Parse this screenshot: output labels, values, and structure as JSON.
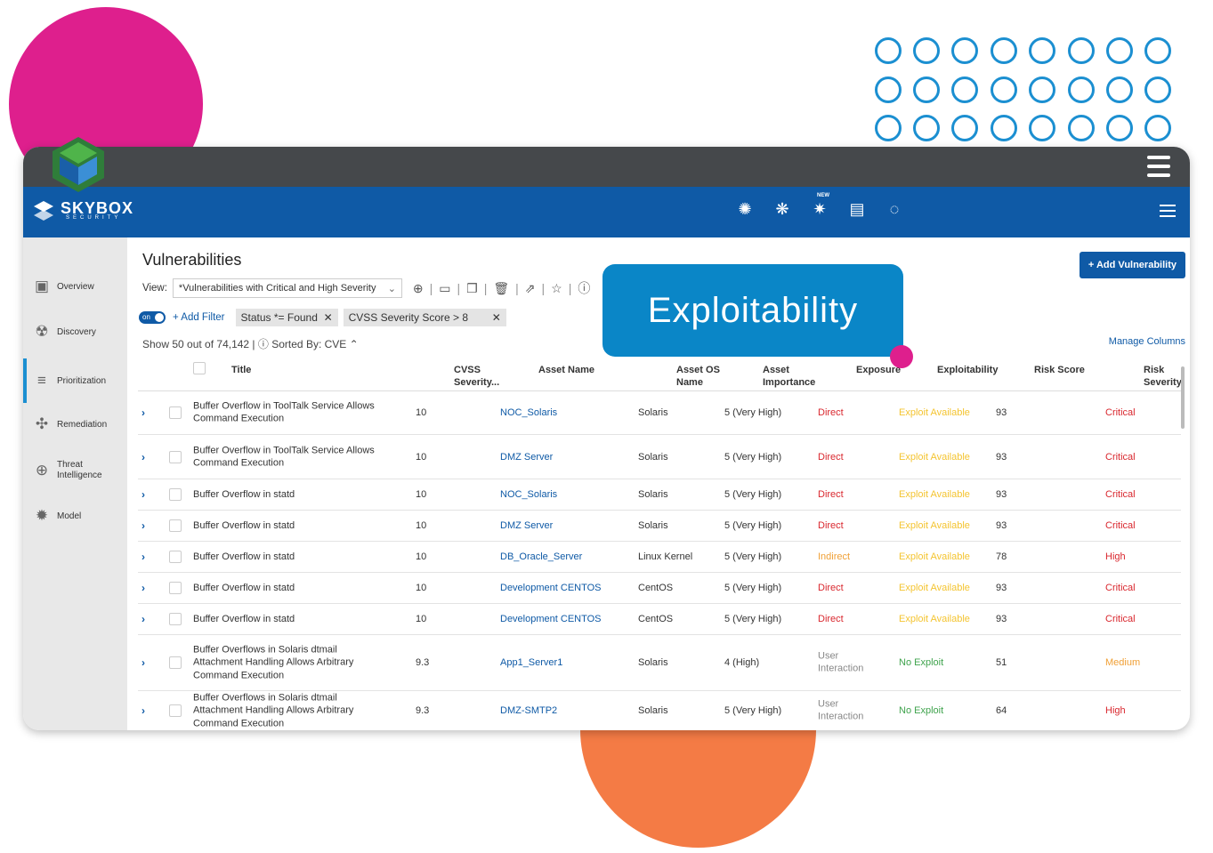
{
  "brand": {
    "name": "SKYBOX",
    "subtitle": "SECURITY"
  },
  "nav_icons": [
    "network-icon",
    "topology-icon",
    "new-feature-icon",
    "clipboard-icon",
    "chat-icon"
  ],
  "nav_new_badge": "NEW",
  "sidebar": {
    "items": [
      {
        "label": "Overview",
        "icon": "overview-icon"
      },
      {
        "label": "Discovery",
        "icon": "discovery-icon"
      },
      {
        "label": "Prioritization",
        "icon": "prioritization-icon",
        "active": true
      },
      {
        "label": "Remediation",
        "icon": "remediation-icon"
      },
      {
        "label": "Threat Intelligence",
        "icon": "threat-intel-icon"
      },
      {
        "label": "Model",
        "icon": "model-icon"
      }
    ]
  },
  "page": {
    "title": "Vulnerabilities",
    "add_button": "+ Add Vulnerability",
    "view_label": "View:",
    "view_value": "*Vulnerabilities with Critical and High Severity",
    "toggle_label": "on",
    "add_filter": "+ Add Filter",
    "filters": [
      "Status *= Found",
      "CVSS Severity Score > 8"
    ],
    "show_text": "Show 50 out of 74,142 |",
    "sorted_by_label": "Sorted By:",
    "sorted_by_value": "CVE",
    "manage_columns": "Manage Columns"
  },
  "callout": {
    "text": "Exploitability"
  },
  "columns": {
    "title": "Title",
    "cvss": "CVSS Severity...",
    "asset_name": "Asset Name",
    "asset_os": "Asset OS Name",
    "asset_importance": "Asset Importance",
    "exposure": "Exposure",
    "exploitability": "Exploitability",
    "risk_score": "Risk Score",
    "risk_severity": "Risk Severity"
  },
  "rows": [
    {
      "title": "Buffer Overflow in ToolTalk Service Allows Command Execution",
      "cvss": "10",
      "asset": "NOC_Solaris",
      "os": "Solaris",
      "importance": "5 (Very High)",
      "exposure": "Direct",
      "exploit": "Exploit Available",
      "score": "93",
      "severity": "Critical"
    },
    {
      "title": "Buffer Overflow in ToolTalk Service Allows Command Execution",
      "cvss": "10",
      "asset": "DMZ Server",
      "os": "Solaris",
      "importance": "5 (Very High)",
      "exposure": "Direct",
      "exploit": "Exploit Available",
      "score": "93",
      "severity": "Critical"
    },
    {
      "title": "Buffer Overflow in statd",
      "cvss": "10",
      "asset": "NOC_Solaris",
      "os": "Solaris",
      "importance": "5 (Very High)",
      "exposure": "Direct",
      "exploit": "Exploit Available",
      "score": "93",
      "severity": "Critical"
    },
    {
      "title": "Buffer Overflow in statd",
      "cvss": "10",
      "asset": "DMZ Server",
      "os": "Solaris",
      "importance": "5 (Very High)",
      "exposure": "Direct",
      "exploit": "Exploit Available",
      "score": "93",
      "severity": "Critical"
    },
    {
      "title": "Buffer Overflow in statd",
      "cvss": "10",
      "asset": "DB_Oracle_Server",
      "os": "Linux Kernel",
      "importance": "5 (Very High)",
      "exposure": "Indirect",
      "exploit": "Exploit Available",
      "score": "78",
      "severity": "High"
    },
    {
      "title": "Buffer Overflow in statd",
      "cvss": "10",
      "asset": "Development CENTOS",
      "os": "CentOS",
      "importance": "5 (Very High)",
      "exposure": "Direct",
      "exploit": "Exploit Available",
      "score": "93",
      "severity": "Critical"
    },
    {
      "title": "Buffer Overflow in statd",
      "cvss": "10",
      "asset": "Development CENTOS",
      "os": "CentOS",
      "importance": "5 (Very High)",
      "exposure": "Direct",
      "exploit": "Exploit Available",
      "score": "93",
      "severity": "Critical"
    },
    {
      "title": "Buffer Overflows in Solaris dtmail Attachment Handling Allows Arbitrary Command Execution",
      "cvss": "9.3",
      "asset": "App1_Server1",
      "os": "Solaris",
      "importance": "4 (High)",
      "exposure": "User Interaction",
      "exploit": "No Exploit",
      "score": "51",
      "severity": "Medium"
    },
    {
      "title": "Buffer Overflows in Solaris dtmail Attachment Handling Allows Arbitrary Command Execution",
      "cvss": "9.3",
      "asset": "DMZ-SMTP2",
      "os": "Solaris",
      "importance": "5 (Very High)",
      "exposure": "User Interaction",
      "exploit": "No Exploit",
      "score": "64",
      "severity": "High"
    }
  ],
  "colors": {
    "brand_blue": "#0f5aa6",
    "critical": "#d9272e",
    "high": "#d9272e",
    "medium": "#f0a036",
    "exploit_available": "#f4c430",
    "no_exploit": "#3fa34d",
    "callout": "#0a86c7",
    "deco_pink": "#de1f8d",
    "deco_orange": "#f47b45"
  }
}
